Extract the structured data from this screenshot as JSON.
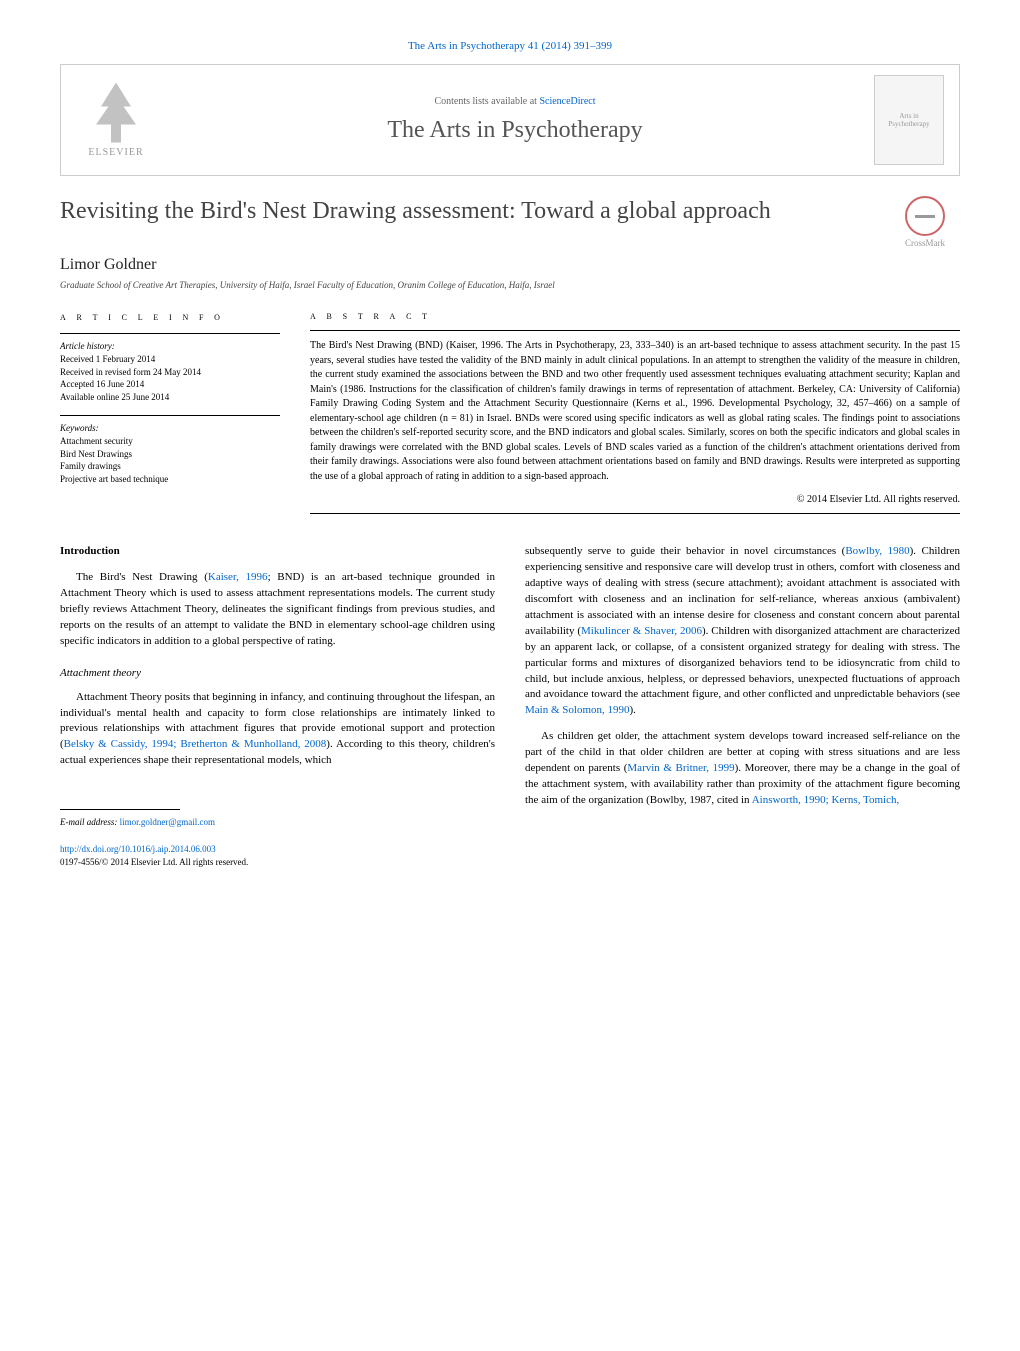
{
  "header": {
    "top_link": "The Arts in Psychotherapy 41 (2014) 391–399",
    "contents_text": "Contents lists available at ",
    "contents_link": "ScienceDirect",
    "journal_name": "The Arts in Psychotherapy",
    "publisher_name": "ELSEVIER",
    "cover_text": "Arts in Psychotherapy"
  },
  "crossmark_label": "CrossMark",
  "title": "Revisiting the Bird's Nest Drawing assessment: Toward a global approach",
  "author": "Limor Goldner",
  "affiliation": "Graduate School of Creative Art Therapies, University of Haifa, Israel Faculty of Education, Oranim College of Education, Haifa, Israel",
  "article_info": {
    "header": "a r t i c l e   i n f o",
    "history_label": "Article history:",
    "received": "Received 1 February 2014",
    "revised": "Received in revised form 24 May 2014",
    "accepted": "Accepted 16 June 2014",
    "online": "Available online 25 June 2014",
    "keywords_label": "Keywords:",
    "keywords": [
      "Attachment security",
      "Bird Nest Drawings",
      "Family drawings",
      "Projective art based technique"
    ]
  },
  "abstract": {
    "header": "a b s t r a c t",
    "text": "The Bird's Nest Drawing (BND) (Kaiser, 1996. The Arts in Psychotherapy, 23, 333–340) is an art-based technique to assess attachment security. In the past 15 years, several studies have tested the validity of the BND mainly in adult clinical populations. In an attempt to strengthen the validity of the measure in children, the current study examined the associations between the BND and two other frequently used assessment techniques evaluating attachment security; Kaplan and Main's (1986. Instructions for the classification of children's family drawings in terms of representation of attachment. Berkeley, CA: University of California) Family Drawing Coding System and the Attachment Security Questionnaire (Kerns et al., 1996. Developmental Psychology, 32, 457–466) on a sample of elementary-school age children (n = 81) in Israel. BNDs were scored using specific indicators as well as global rating scales. The findings point to associations between the children's self-reported security score, and the BND indicators and global scales. Similarly, scores on both the specific indicators and global scales in family drawings were correlated with the BND global scales. Levels of BND scales varied as a function of the children's attachment orientations derived from their family drawings. Associations were also found between attachment orientations based on family and BND drawings. Results were interpreted as supporting the use of a global approach of rating in addition to a sign-based approach.",
    "copyright": "© 2014 Elsevier Ltd. All rights reserved."
  },
  "body": {
    "intro_heading": "Introduction",
    "intro_p1_a": "The Bird's Nest Drawing (",
    "intro_p1_ref": "Kaiser, 1996",
    "intro_p1_b": "; BND) is an art-based technique grounded in Attachment Theory which is used to assess attachment representations models. The current study briefly reviews Attachment Theory, delineates the significant findings from previous studies, and reports on the results of an attempt to validate the BND in elementary school-age children using specific indicators in addition to a global perspective of rating.",
    "sub_heading": "Attachment theory",
    "p2_a": "Attachment Theory posits that beginning in infancy, and continuing throughout the lifespan, an individual's mental health and capacity to form close relationships are intimately linked to previous relationships with attachment figures that provide emotional support and protection (",
    "p2_ref": "Belsky & Cassidy, 1994; Bretherton & Munholland, 2008",
    "p2_b": "). According to this theory, children's actual experiences shape their representational models, which",
    "col2_p1_a": "subsequently serve to guide their behavior in novel circumstances (",
    "col2_p1_ref1": "Bowlby, 1980",
    "col2_p1_b": "). Children experiencing sensitive and responsive care will develop trust in others, comfort with closeness and adaptive ways of dealing with stress (secure attachment); avoidant attachment is associated with discomfort with closeness and an inclination for self-reliance, whereas anxious (ambivalent) attachment is associated with an intense desire for closeness and constant concern about parental availability (",
    "col2_p1_ref2": "Mikulincer & Shaver, 2006",
    "col2_p1_c": "). Children with disorganized attachment are characterized by an apparent lack, or collapse, of a consistent organized strategy for dealing with stress. The particular forms and mixtures of disorganized behaviors tend to be idiosyncratic from child to child, but include anxious, helpless, or depressed behaviors, unexpected fluctuations of approach and avoidance toward the attachment figure, and other conflicted and unpredictable behaviors (see ",
    "col2_p1_ref3": "Main & Solomon, 1990",
    "col2_p1_d": ").",
    "col2_p2_a": "As children get older, the attachment system develops toward increased self-reliance on the part of the child in that older children are better at coping with stress situations and are less dependent on parents (",
    "col2_p2_ref1": "Marvin & Britner, 1999",
    "col2_p2_b": "). Moreover, there may be a change in the goal of the attachment system, with availability rather than proximity of the attachment figure becoming the aim of the organization (Bowlby, 1987, cited in ",
    "col2_p2_ref2": "Ainsworth, 1990; Kerns, Tomich,",
    "col2_p2_c": ""
  },
  "footer": {
    "email_label": "E-mail address: ",
    "email": "limor.goldner@gmail.com",
    "doi_link": "http://dx.doi.org/10.1016/j.aip.2014.06.003",
    "issn_line": "0197-4556/© 2014 Elsevier Ltd. All rights reserved."
  },
  "colors": {
    "link": "#0066cc",
    "text": "#000000",
    "muted": "#666666"
  }
}
